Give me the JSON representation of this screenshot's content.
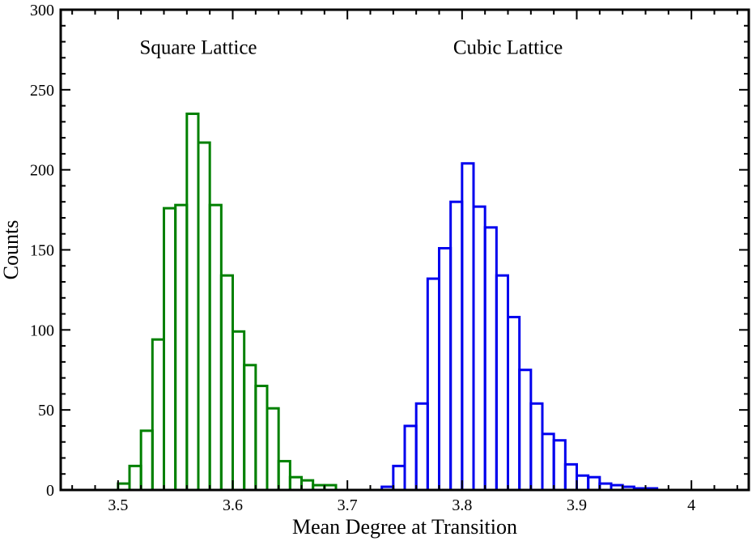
{
  "chart_data": {
    "type": "histogram",
    "title": "",
    "xlabel": "Mean Degree at Transition",
    "ylabel": "Counts",
    "xlim": [
      3.45,
      4.05
    ],
    "ylim": [
      0,
      300
    ],
    "x_ticks": [
      3.5,
      3.6,
      3.7,
      3.8,
      3.9,
      4.0
    ],
    "x_tick_labels": [
      "3.5",
      "3.6",
      "3.7",
      "3.8",
      "3.9",
      "4"
    ],
    "y_ticks": [
      0,
      50,
      100,
      150,
      200,
      250,
      300
    ],
    "y_tick_labels": [
      "0",
      "50",
      "100",
      "150",
      "200",
      "250",
      "300"
    ],
    "bin_width": 0.01,
    "grid": false,
    "legend": "none",
    "annotations": [
      {
        "text": "Square Lattice",
        "x": 3.57,
        "y": 277
      },
      {
        "text": "Cubic Lattice",
        "x": 3.84,
        "y": 277
      }
    ],
    "series": [
      {
        "color": "#008000",
        "bin_starts": [
          3.5,
          3.51,
          3.52,
          3.53,
          3.54,
          3.55,
          3.56,
          3.57,
          3.58,
          3.59,
          3.6,
          3.61,
          3.62,
          3.63,
          3.64,
          3.65,
          3.66,
          3.67,
          3.68
        ],
        "counts": [
          4,
          15,
          37,
          94,
          176,
          178,
          235,
          217,
          178,
          134,
          99,
          78,
          65,
          51,
          18,
          8,
          6,
          3,
          3
        ]
      },
      {
        "color": "#0000ee",
        "bin_starts": [
          3.73,
          3.74,
          3.75,
          3.76,
          3.77,
          3.78,
          3.79,
          3.8,
          3.81,
          3.82,
          3.83,
          3.84,
          3.85,
          3.86,
          3.87,
          3.88,
          3.89,
          3.9,
          3.91,
          3.92,
          3.93,
          3.94,
          3.95,
          3.96
        ],
        "counts": [
          2,
          15,
          40,
          54,
          132,
          151,
          180,
          204,
          177,
          164,
          134,
          108,
          75,
          54,
          35,
          31,
          16,
          9,
          8,
          4,
          3,
          2,
          1,
          1
        ]
      }
    ]
  }
}
